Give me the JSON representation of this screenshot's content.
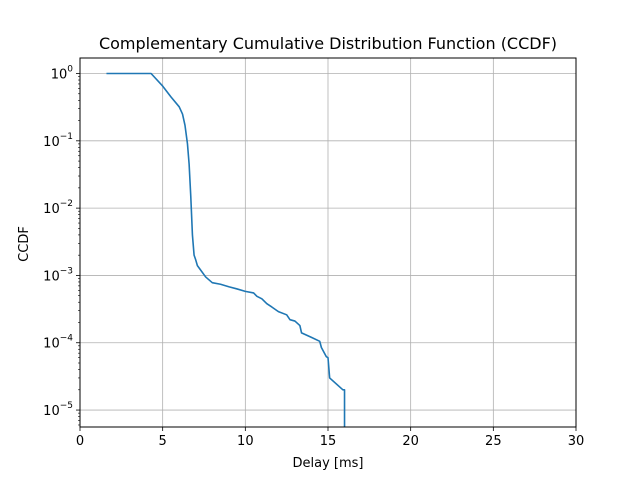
{
  "chart_data": {
    "type": "line",
    "title": "Complementary Cumulative Distribution Function (CCDF)",
    "xlabel": "Delay [ms]",
    "ylabel": "CCDF",
    "xlim": [
      0,
      30
    ],
    "ylim": [
      5.6e-06,
      1.7
    ],
    "yscale": "log",
    "grid": true,
    "x_ticks": [
      0,
      5,
      10,
      15,
      20,
      25,
      30
    ],
    "x_tick_labels": [
      "0",
      "5",
      "10",
      "15",
      "20",
      "25",
      "30"
    ],
    "y_ticks": [
      {
        "value": 1,
        "base": "10",
        "exp": "0"
      },
      {
        "value": 0.1,
        "base": "10",
        "exp": "−1"
      },
      {
        "value": 0.01,
        "base": "10",
        "exp": "−2"
      },
      {
        "value": 0.001,
        "base": "10",
        "exp": "−3"
      },
      {
        "value": 0.0001,
        "base": "10",
        "exp": "−4"
      },
      {
        "value": 1e-05,
        "base": "10",
        "exp": "−5"
      }
    ],
    "series": [
      {
        "color": "#1f77b4",
        "x": [
          1.6,
          4.3,
          5.0,
          5.5,
          6.0,
          6.2,
          6.35,
          6.5,
          6.6,
          6.7,
          6.8,
          6.9,
          7.0,
          7.1,
          7.3,
          7.6,
          8.0,
          8.5,
          9.0,
          9.5,
          10.0,
          10.5,
          10.7,
          11.0,
          11.3,
          11.6,
          12.0,
          12.5,
          12.7,
          13.0,
          13.3,
          13.4,
          14.0,
          14.5,
          14.6,
          14.9,
          15.0,
          15.1,
          15.9,
          16.0,
          16.0
        ],
        "y": [
          1.0,
          1.0,
          0.65,
          0.45,
          0.32,
          0.25,
          0.17,
          0.09,
          0.045,
          0.015,
          0.004,
          0.002,
          0.0017,
          0.0014,
          0.0012,
          0.00095,
          0.00078,
          0.00074,
          0.00068,
          0.00063,
          0.00058,
          0.00055,
          0.00049,
          0.00045,
          0.00038,
          0.00034,
          0.00029,
          0.00026,
          0.00022,
          0.00021,
          0.00018,
          0.00014,
          0.00012,
          0.000105,
          8.5e-05,
          6.2e-05,
          6e-05,
          3e-05,
          2e-05,
          2e-05,
          5.6e-06
        ]
      }
    ]
  }
}
